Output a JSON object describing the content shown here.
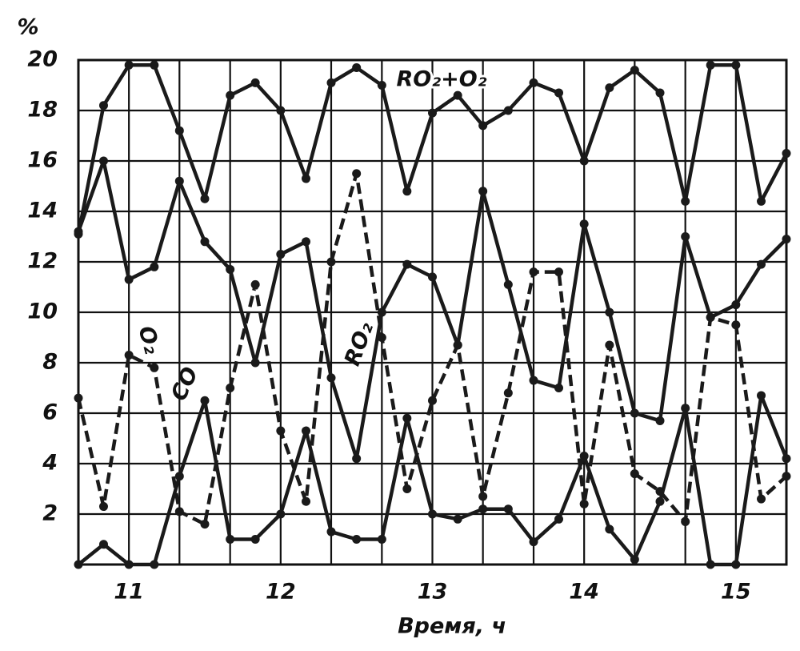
{
  "chart_data": {
    "type": "line",
    "y_label": "%",
    "x_label": "Время, ч",
    "x": [
      10.667,
      10.833,
      11,
      11.167,
      11.333,
      11.5,
      11.667,
      11.833,
      12,
      12.167,
      12.333,
      12.5,
      12.667,
      12.833,
      13,
      13.167,
      13.333,
      13.5,
      13.667,
      13.833,
      14,
      14.167,
      14.333,
      14.5,
      14.667,
      14.833,
      15,
      15.167,
      15.333
    ],
    "series": [
      {
        "name": "RO₂+O₂",
        "color": "#1a1a1a",
        "dashed": false,
        "values": [
          13.1,
          18.2,
          19.8,
          19.8,
          17.2,
          14.5,
          18.6,
          19.1,
          18,
          15.3,
          19.1,
          19.7,
          19,
          14.8,
          17.9,
          18.6,
          17.4,
          18,
          19.1,
          18.7,
          16,
          18.9,
          19.6,
          18.7,
          14.4,
          19.8,
          19.8,
          14.4,
          16.3
        ]
      },
      {
        "name": "RO₂",
        "color": "#1a1a1a",
        "dashed": false,
        "values": [
          13.2,
          16,
          11.3,
          11.8,
          15.2,
          12.8,
          11.7,
          8,
          12.3,
          12.8,
          7.4,
          4.2,
          10,
          11.9,
          11.4,
          8.7,
          14.8,
          11.1,
          7.3,
          7,
          13.5,
          10,
          6,
          5.7,
          13,
          9.8,
          10.3,
          11.9,
          12.9
        ]
      },
      {
        "name": "O₂",
        "color": "#1a1a1a",
        "dashed": true,
        "values": [
          6.6,
          2.3,
          8.3,
          7.8,
          2.1,
          1.6,
          7,
          11.1,
          5.3,
          2.5,
          12,
          15.5,
          9,
          3,
          6.5,
          8.7,
          2.7,
          6.8,
          11.6,
          11.6,
          2.4,
          8.7,
          3.6,
          2.9,
          1.7,
          9.8,
          9.5,
          2.6,
          3.5
        ]
      },
      {
        "name": "CO",
        "color": "#1a1a1a",
        "dashed": false,
        "values": [
          0,
          0.8,
          0,
          0,
          3.5,
          6.5,
          1,
          1,
          2,
          5.3,
          1.3,
          1,
          1,
          5.8,
          2,
          1.8,
          2.2,
          2.2,
          0.9,
          1.8,
          4.3,
          1.4,
          0.2,
          2.5,
          6.2,
          0,
          0,
          6.7,
          4.2
        ]
      }
    ],
    "xlim": [
      10.667,
      15.333
    ],
    "ylim": [
      0,
      20
    ],
    "xticks": [
      11,
      12,
      13,
      14,
      15
    ],
    "xminor": [
      10.667,
      11.333,
      11.667,
      12.333,
      12.667,
      13.333,
      13.667,
      14.333,
      14.667,
      15.333
    ],
    "yticks": [
      2,
      4,
      6,
      8,
      10,
      12,
      14,
      16,
      18,
      20
    ],
    "grid": true
  }
}
